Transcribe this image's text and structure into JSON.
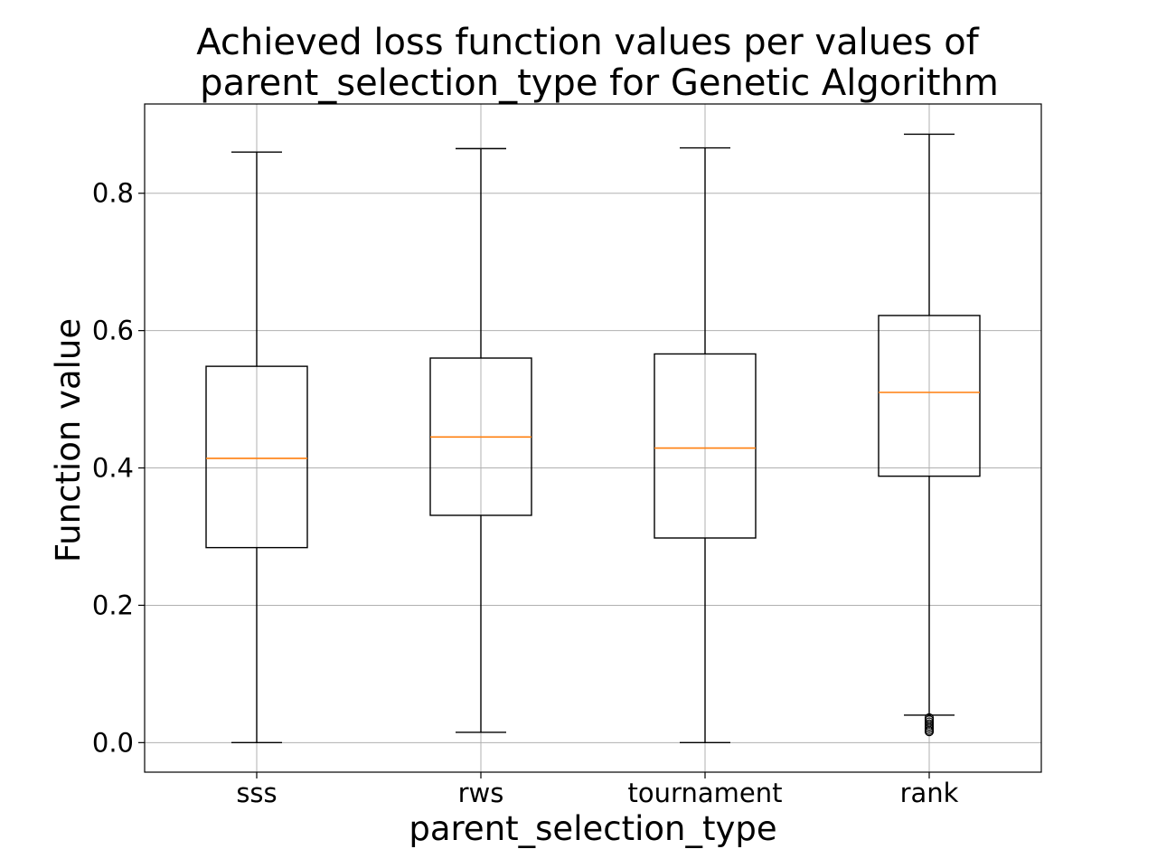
{
  "chart_data": {
    "type": "boxplot",
    "title_lines": [
      "Achieved loss function values per values of",
      "parent_selection_type for Genetic Algorithm"
    ],
    "xlabel": "parent_selection_type",
    "ylabel": "Function value",
    "ylim": [
      -0.043,
      0.93
    ],
    "yticks": [
      0.0,
      0.2,
      0.4,
      0.6,
      0.8
    ],
    "ytick_labels": [
      "0.0",
      "0.2",
      "0.4",
      "0.6",
      "0.8"
    ],
    "grid": true,
    "colors": {
      "box": "#000000",
      "median": "#ff7f0e",
      "grid": "#b0b0b0"
    },
    "categories": [
      "sss",
      "rws",
      "tournament",
      "rank"
    ],
    "boxes": [
      {
        "category": "sss",
        "whisker_low": 0.0,
        "q1": 0.284,
        "median": 0.414,
        "q3": 0.548,
        "whisker_high": 0.86,
        "fliers": []
      },
      {
        "category": "rws",
        "whisker_low": 0.015,
        "q1": 0.331,
        "median": 0.445,
        "q3": 0.56,
        "whisker_high": 0.865,
        "fliers": []
      },
      {
        "category": "tournament",
        "whisker_low": 0.0,
        "q1": 0.298,
        "median": 0.429,
        "q3": 0.566,
        "whisker_high": 0.866,
        "fliers": []
      },
      {
        "category": "rank",
        "whisker_low": 0.04,
        "q1": 0.388,
        "median": 0.51,
        "q3": 0.622,
        "whisker_high": 0.886,
        "fliers": [
          0.036,
          0.033,
          0.03,
          0.027,
          0.024,
          0.021,
          0.018,
          0.016
        ]
      }
    ]
  }
}
